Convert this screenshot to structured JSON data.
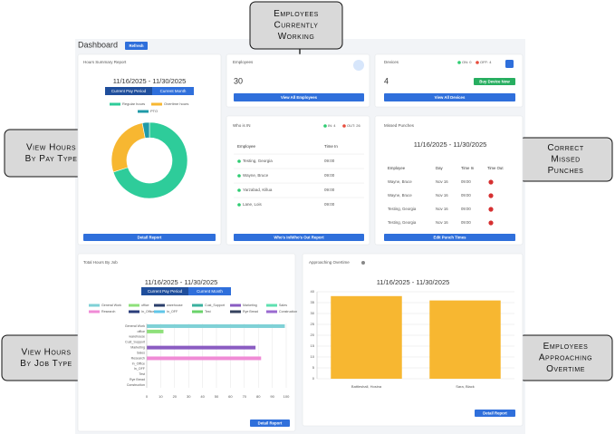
{
  "callouts": [
    [
      "Employees",
      "Currently",
      "Working"
    ],
    [
      "View Hours",
      "By Pay Type"
    ],
    [
      "Correct",
      "Missed",
      "Punches"
    ],
    [
      "View Hours",
      "By Job Type"
    ],
    [
      "Employees",
      "Approaching",
      "Overtime"
    ]
  ],
  "dashboard": {
    "title": "Dashboard",
    "refresh": "Refresh"
  },
  "hours_summary": {
    "title": "Hours Summary Report",
    "date_range": "11/16/2025 - 11/30/2025",
    "tabs": [
      "Current Pay Period",
      "Current Month"
    ],
    "chart": {
      "type": "pie",
      "donut": true,
      "categories": [
        "Regular hours",
        "Overtime hours",
        "PTO"
      ],
      "values": [
        70,
        27,
        3
      ],
      "colors": [
        "#2ecc9a",
        "#f7b731",
        "#1f9aa8"
      ]
    },
    "button": "Detail Report"
  },
  "employees": {
    "title": "Employees",
    "count": 30,
    "button": "View All Employees"
  },
  "devices": {
    "title": "Devices",
    "on": "ON: 0",
    "off": "OFF: 4",
    "count": 4,
    "buy": "Buy Device Now",
    "button": "View All Devices"
  },
  "who_is_in": {
    "title": "Who is IN",
    "in": "IN: 4",
    "out": "OUT: 26",
    "columns": [
      "Employee",
      "Time In"
    ],
    "rows": [
      [
        "Testing, Georgia",
        "09:00"
      ],
      [
        "Wayne, Bruce",
        "09:00"
      ],
      [
        "Yarzabad, Killua",
        "09:00"
      ],
      [
        "Lane, Lois",
        "09:00"
      ]
    ],
    "button": "Who's In/Who's Out Report"
  },
  "missed_punches": {
    "title": "Missed Punches",
    "date_range": "11/16/2025 - 11/30/2025",
    "columns": [
      "Employee",
      "Day",
      "Time In",
      "Time Out"
    ],
    "rows": [
      [
        "Wayne, Bruce",
        "Nov 16",
        "09:00"
      ],
      [
        "Wayne, Bruce",
        "Nov 16",
        "09:00"
      ],
      [
        "Testing, Georgia",
        "Nov 16",
        "09:00"
      ],
      [
        "Testing, Georgia",
        "Nov 16",
        "09:00"
      ]
    ],
    "button": "Edit Punch Times"
  },
  "hours_by_job": {
    "title": "Total Hours By Job",
    "date_range": "11/16/2025 - 11/30/2025",
    "tabs": [
      "Current Pay Period",
      "Current Month"
    ],
    "chart": {
      "type": "bar",
      "orientation": "horizontal",
      "categories": [
        "General Work",
        "office",
        "warehouse",
        "Cust_Support",
        "Marketing",
        "Sales",
        "Research",
        "In_Office",
        "In_OFF",
        "Test",
        "Rye Bread",
        "Construction"
      ],
      "values": [
        99,
        12,
        0,
        0,
        78,
        0,
        82,
        0,
        0,
        0,
        0,
        0
      ],
      "colors": [
        "#7fd1d6",
        "#8ee07a",
        "#2b3f6b",
        "#3ab09e",
        "#8a5cc2",
        "#5ee0b0",
        "#f08bd6",
        "#2a3d7a",
        "#5fc6e8",
        "#6ad36a",
        "#35425e",
        "#9a6ad0"
      ],
      "xlim": [
        0,
        100
      ],
      "xticks": [
        0,
        10,
        20,
        30,
        40,
        50,
        60,
        70,
        80,
        90,
        100
      ],
      "grid": true
    },
    "button": "Detail Report"
  },
  "overtime": {
    "title": "Approaching Overtime",
    "date_range": "11/16/2025 - 11/30/2025",
    "chart": {
      "type": "bar",
      "orientation": "vertical",
      "categories": [
        "Battleshall, Hosina",
        "Sara, Black"
      ],
      "values": [
        38,
        36
      ],
      "color": "#f7b731",
      "ylim": [
        0,
        40
      ],
      "yticks": [
        0,
        5,
        10,
        15,
        20,
        25,
        30,
        35,
        40
      ],
      "grid": true
    },
    "button": "Detail Report"
  }
}
